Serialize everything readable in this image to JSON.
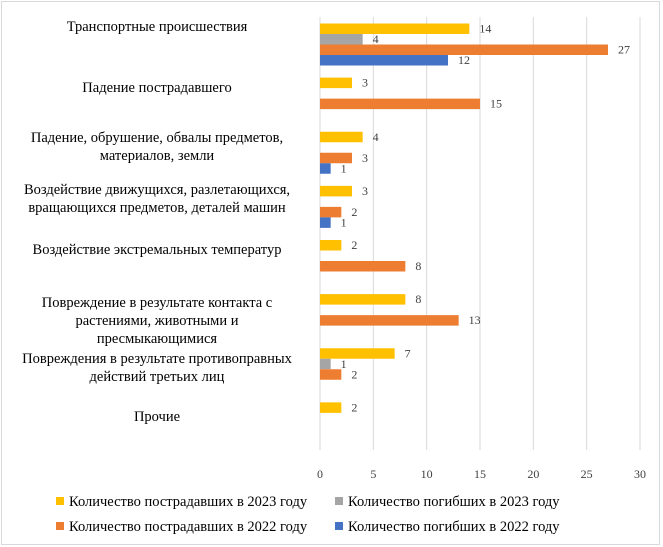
{
  "chart_data": {
    "type": "bar",
    "orientation": "horizontal",
    "title": "",
    "xlabel": "",
    "ylabel": "",
    "xlim": [
      0,
      30
    ],
    "xticks": [
      0,
      5,
      10,
      15,
      20,
      25,
      30
    ],
    "grid": true,
    "legend_position": "bottom",
    "categories": [
      [
        "Транспортные происшествия"
      ],
      [
        "Падение пострадавшего"
      ],
      [
        "Падение, обрушение, обвалы предметов,",
        "материалов, земли"
      ],
      [
        "Воздействие движущихся, разлетающихся,",
        "вращающихся предметов, деталей машин"
      ],
      [
        "Воздействие экстремальных температур"
      ],
      [
        "Повреждение в результате контакта с",
        "растениями, животными и",
        "пресмыкающимися"
      ],
      [
        "Повреждения в результате противоправных",
        "действий третьих лиц"
      ],
      [
        "Прочие"
      ]
    ],
    "series": [
      {
        "name": "Количество пострадавших в 2023 году",
        "color": "#FFC000",
        "values": [
          14,
          3,
          4,
          3,
          2,
          8,
          7,
          2
        ]
      },
      {
        "name": "Количество погибших  в 2023 году",
        "color": "#A5A5A5",
        "values": [
          4,
          null,
          null,
          null,
          null,
          null,
          1,
          null
        ]
      },
      {
        "name": "Количество пострадавших в 2022 году",
        "color": "#ED7D31",
        "values": [
          27,
          15,
          3,
          2,
          8,
          13,
          2,
          null
        ]
      },
      {
        "name": "Количество погибших  в 2022 году",
        "color": "#4472C4",
        "values": [
          12,
          null,
          1,
          1,
          null,
          null,
          null,
          null
        ]
      }
    ]
  }
}
